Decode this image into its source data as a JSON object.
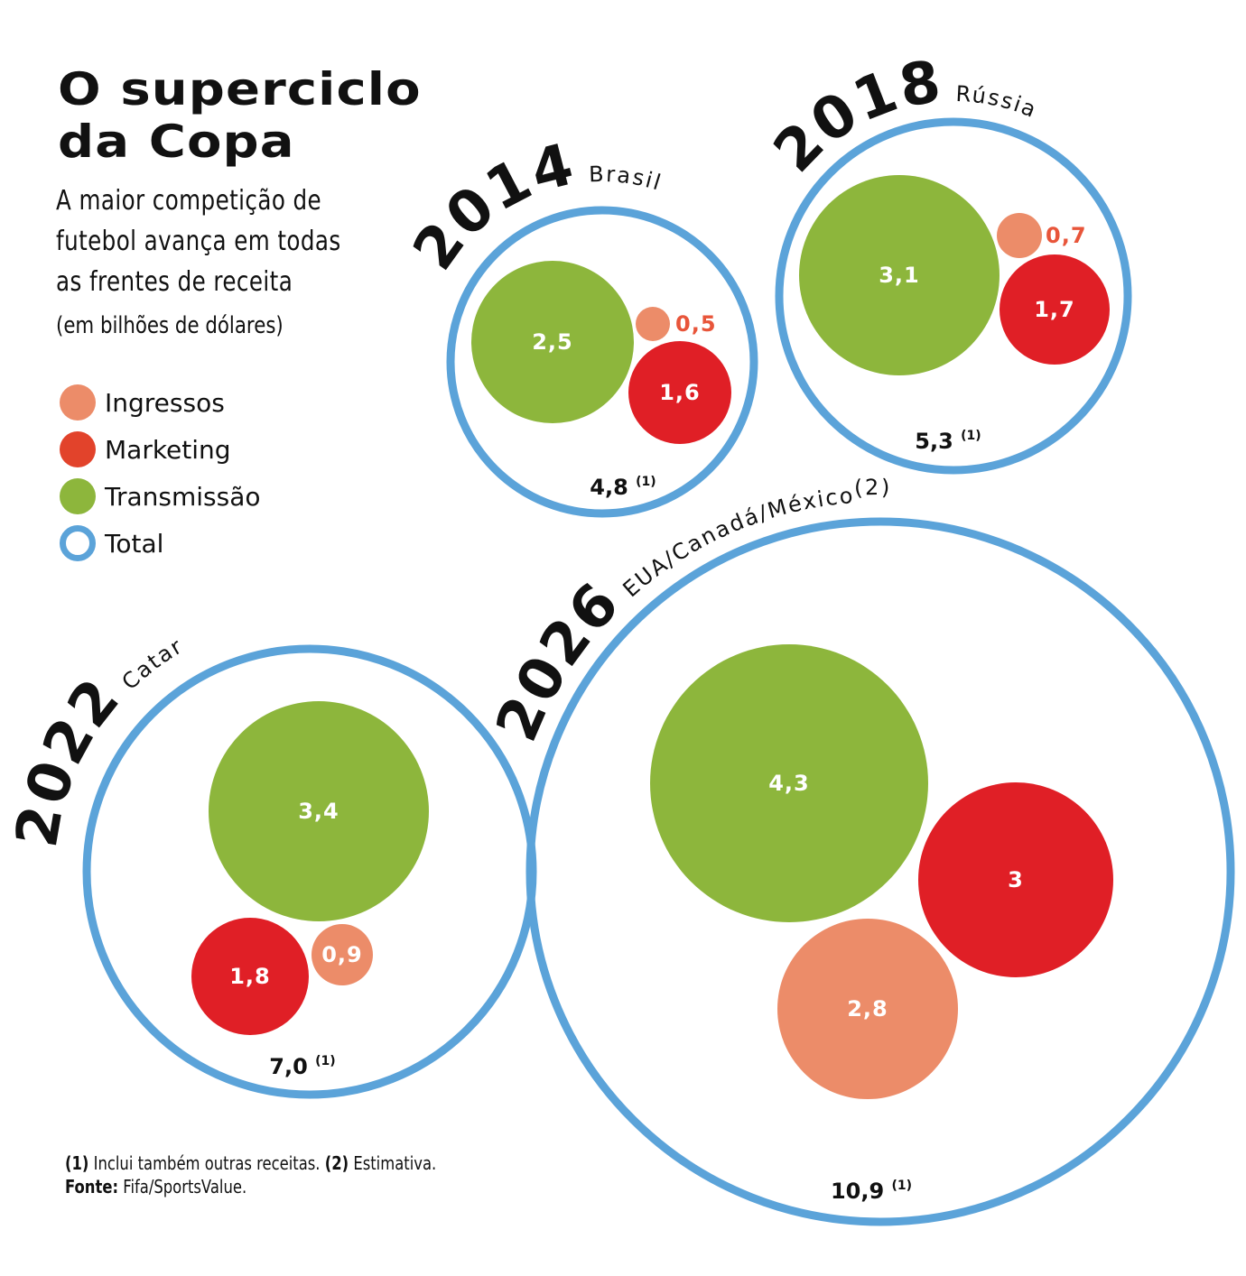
{
  "title_line1": "O superciclo",
  "title_line2": "da Copa",
  "subtitle": "A maior competição de futebol avança em todas as frentes de receita",
  "unit": "(em bilhões de dólares)",
  "legend": [
    {
      "label": "Ingressos",
      "color": "#ec8c69",
      "type": "fill"
    },
    {
      "label": "Marketing",
      "color": "#e2432b",
      "type": "fill"
    },
    {
      "label": "Transmissão",
      "color": "#8db63c",
      "type": "fill"
    },
    {
      "label": "Total",
      "color": "#5ba3d9",
      "type": "ring"
    }
  ],
  "notes": {
    "n1_mark": "(1)",
    "n1_text": " Inclui também outras receitas. ",
    "n2_mark": "(2)",
    "n2_text": " Estimativa.",
    "source_label": "Fonte:",
    "source_text": " Fifa/SportsValue."
  },
  "chart_data": {
    "type": "bubble",
    "title": "O superciclo da Copa",
    "unit": "bilhões de dólares",
    "colors": {
      "Ingressos": "#ec8c69",
      "Marketing": "#e01f26",
      "Transmissão": "#8db63c",
      "Total": "#5ba3d9"
    },
    "editions": [
      {
        "year": "2014",
        "country": "Brasil",
        "total": 4.8,
        "total_label": "4,8",
        "total_note": "(1)",
        "Transmissão": 2.5,
        "Marketing": 1.6,
        "Ingressos": 0.5,
        "labels": {
          "Transmissão": "2,5",
          "Marketing": "1,6",
          "Ingressos": "0,5"
        }
      },
      {
        "year": "2018",
        "country": "Rússia",
        "total": 5.3,
        "total_label": "5,3",
        "total_note": "(1)",
        "Transmissão": 3.1,
        "Marketing": 1.7,
        "Ingressos": 0.7,
        "labels": {
          "Transmissão": "3,1",
          "Marketing": "1,7",
          "Ingressos": "0,7"
        }
      },
      {
        "year": "2022",
        "country": "Catar",
        "total": 7.0,
        "total_label": "7,0",
        "total_note": "(1)",
        "Transmissão": 3.4,
        "Marketing": 1.8,
        "Ingressos": 0.9,
        "labels": {
          "Transmissão": "3,4",
          "Marketing": "1,8",
          "Ingressos": "0,9"
        }
      },
      {
        "year": "2026",
        "country": "EUA/Canadá/México",
        "country_note": "(2)",
        "total": 10.9,
        "total_label": "10,9",
        "total_note": "(1)",
        "Transmissão": 4.3,
        "Marketing": 3,
        "Ingressos": 2.8,
        "labels": {
          "Transmissão": "4,3",
          "Marketing": "3",
          "Ingressos": "2,8"
        }
      }
    ]
  }
}
